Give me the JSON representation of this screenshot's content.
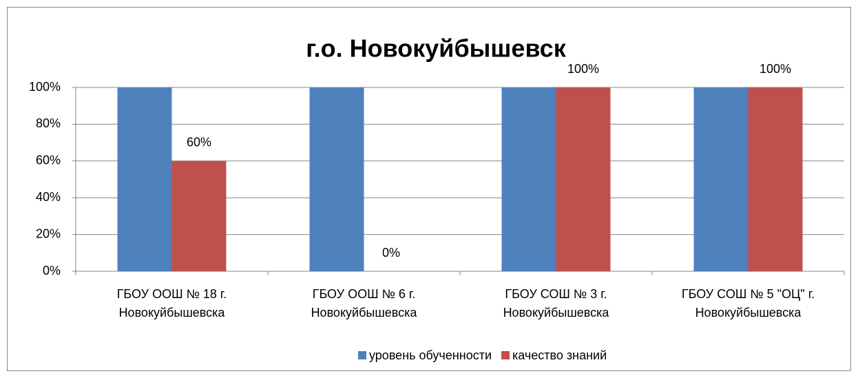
{
  "chart_data": {
    "type": "bar",
    "title": "г.о. Новокуйбышевск",
    "categories": [
      "ГБОУ ООШ № 18 г. Новокуйбышевска",
      "ГБОУ ООШ № 6 г. Новокуйбышевска",
      "ГБОУ СОШ № 3 г. Новокуйбышевска",
      "ГБОУ СОШ № 5 \"ОЦ\" г. Новокуйбышевска"
    ],
    "series": [
      {
        "name": "уровень обученности",
        "color": "#4f81bd",
        "values": [
          100,
          100,
          100,
          100
        ]
      },
      {
        "name": "качество знаний",
        "color": "#c0504d",
        "values": [
          60,
          0,
          100,
          100
        ],
        "value_labels": [
          "60%",
          "0%",
          "100%",
          "100%"
        ]
      }
    ],
    "ylim": [
      0,
      100
    ],
    "yticks": [
      {
        "value": 0,
        "label": "0%"
      },
      {
        "value": 20,
        "label": "20%"
      },
      {
        "value": 40,
        "label": "40%"
      },
      {
        "value": 60,
        "label": "60%"
      },
      {
        "value": 80,
        "label": "80%"
      },
      {
        "value": 100,
        "label": "100%"
      }
    ],
    "grid": true,
    "legend": "bottom"
  }
}
